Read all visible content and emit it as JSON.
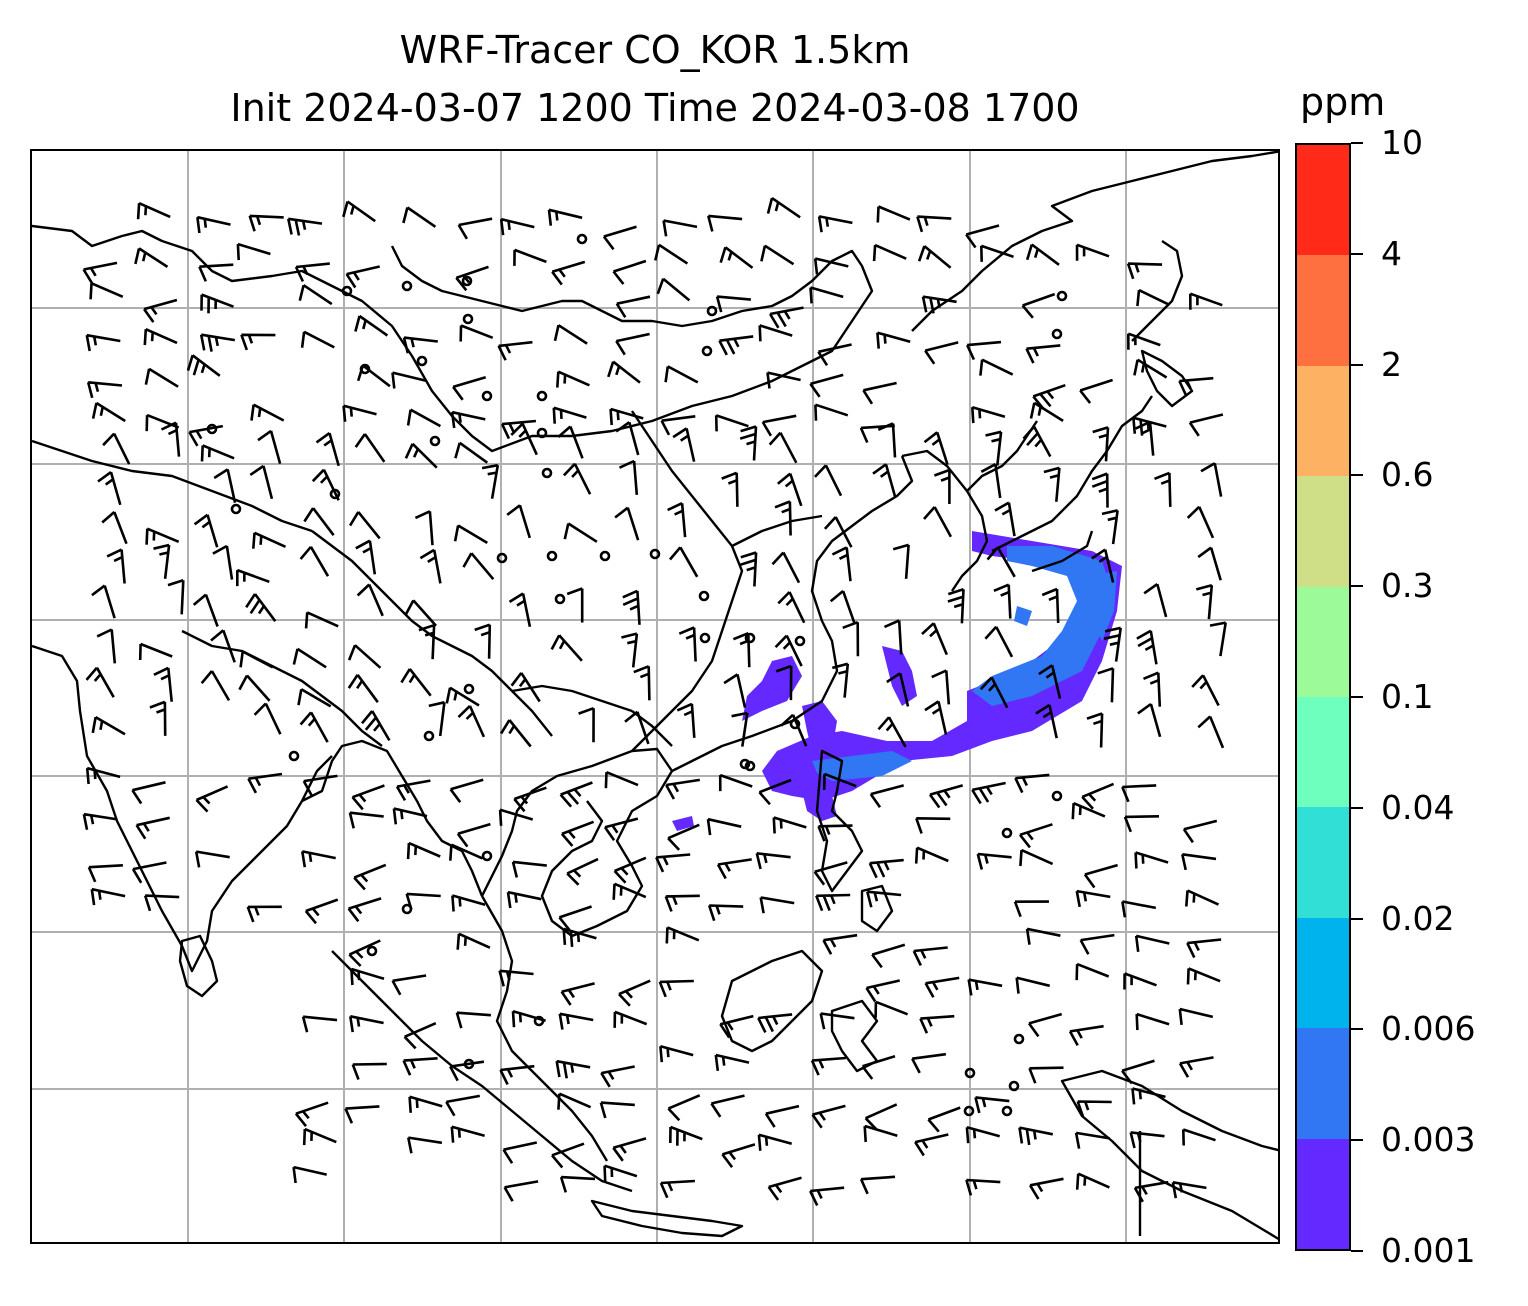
{
  "title": {
    "line1": "WRF-Tracer CO_KOR 1.5km",
    "line2": "Init 2024-03-07 1200 Time 2024-03-08 1700"
  },
  "colorbar": {
    "unit": "ppm",
    "ticks": [
      "0.001",
      "0.003",
      "0.006",
      "0.02",
      "0.04",
      "0.1",
      "0.3",
      "0.6",
      "2",
      "4",
      "10"
    ],
    "colors": [
      "#6329ff",
      "#3177f4",
      "#00b3ec",
      "#31dfd7",
      "#6effbf",
      "#9dfa99",
      "#cfdf88",
      "#fdb162",
      "#ff7040",
      "#ff2a18"
    ]
  },
  "map": {
    "gridlines": true,
    "grid_color": "#b0b0b0",
    "coastline_color": "#000000",
    "wind_barb_color": "#000000",
    "tracer_levels_shown": [
      "#6329ff",
      "#3177f4"
    ]
  }
}
